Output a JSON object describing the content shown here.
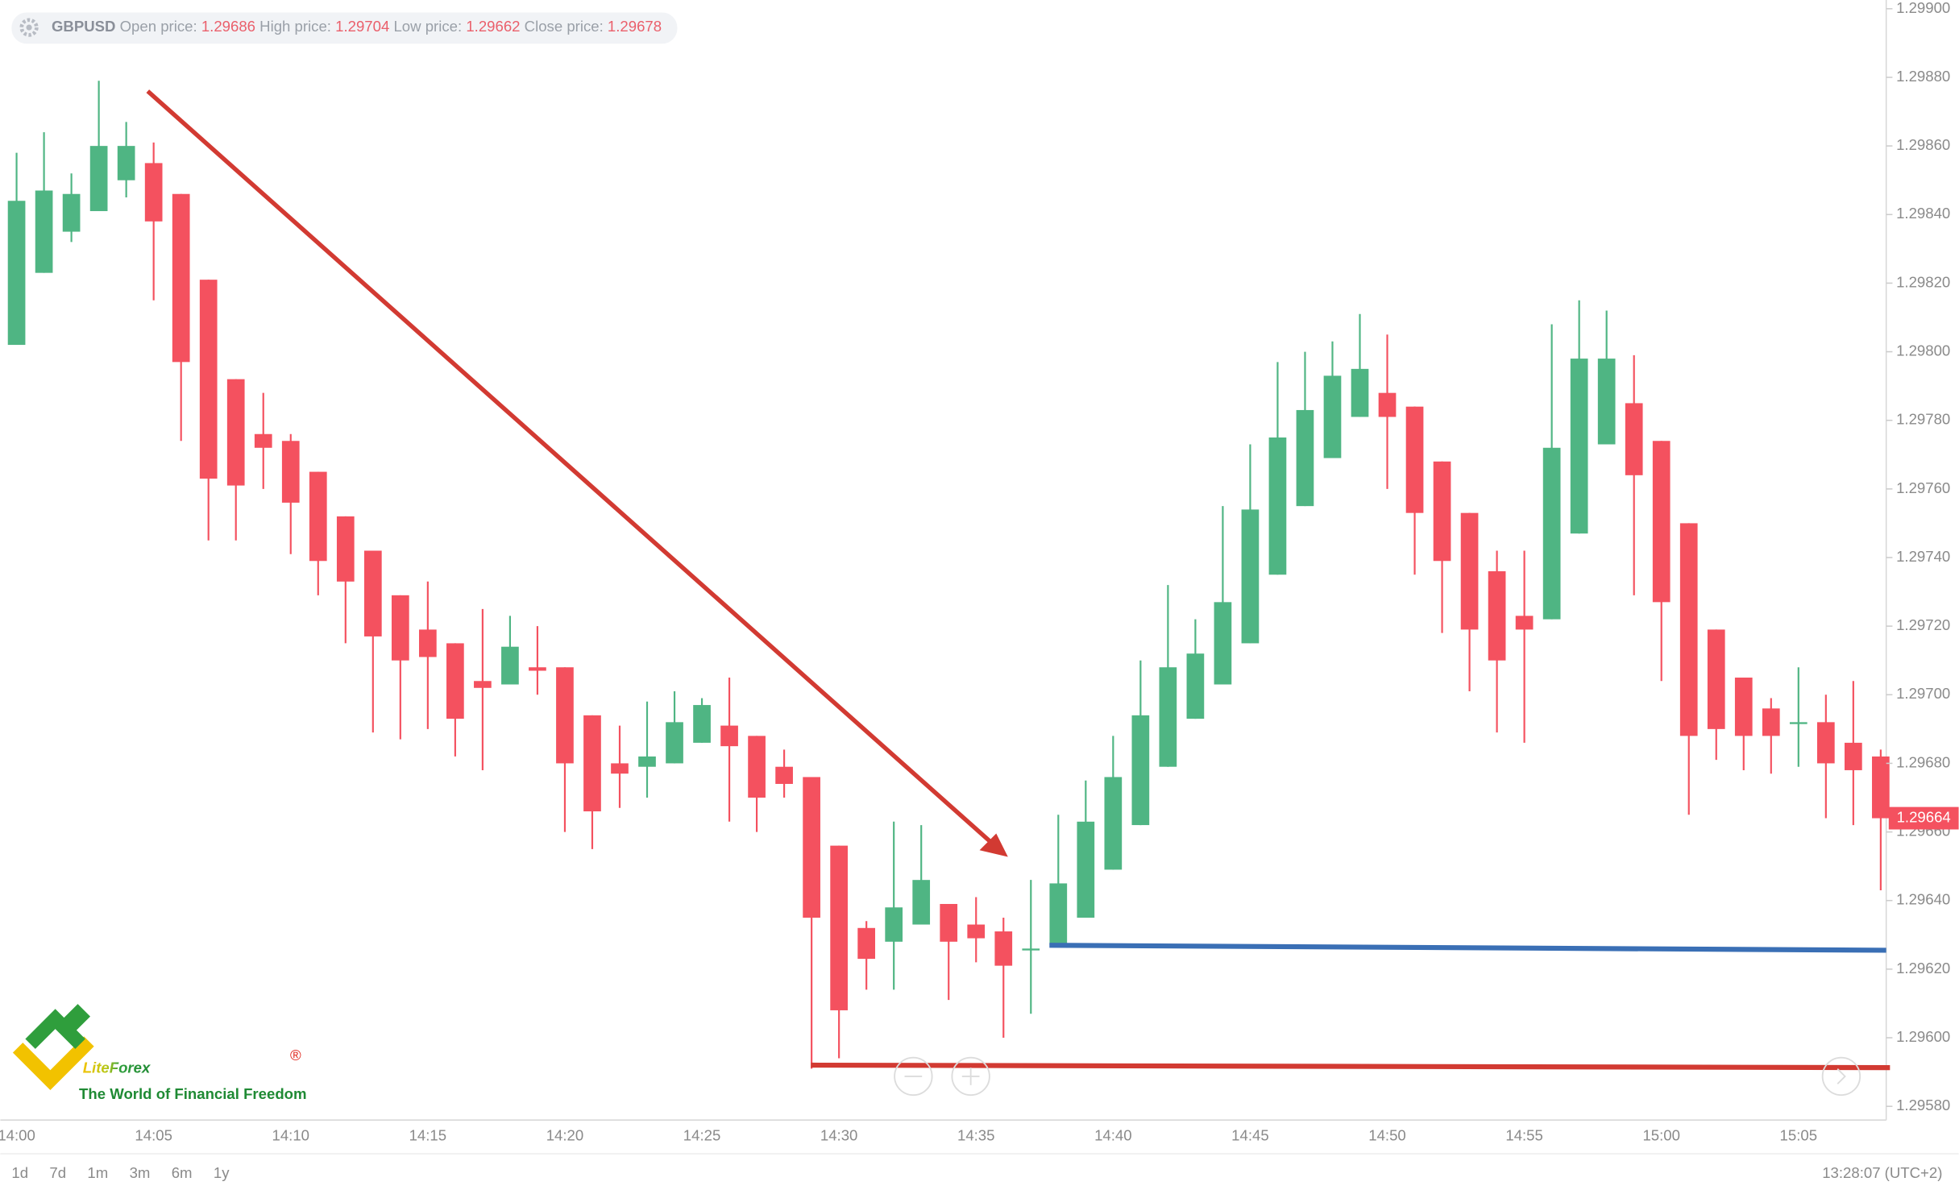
{
  "header": {
    "symbol": "GBPUSD",
    "open_label": "Open price:",
    "open": 1.29686,
    "high_label": "High price:",
    "high": 1.29704,
    "low_label": "Low price:",
    "low": 1.29662,
    "close_label": "Close price:",
    "close": 1.29678
  },
  "logo": {
    "name": "LiteForex",
    "mark": "®",
    "tagline": "The World of Financial Freedom"
  },
  "footer": {
    "periods": [
      "1d",
      "7d",
      "1m",
      "3m",
      "6m",
      "1y"
    ],
    "clock": "13:28:07 (UTC+2)"
  },
  "chart_data": {
    "type": "candlestick",
    "up_color": "#4fb583",
    "down_color": "#f4515f",
    "categories": [
      "14:00",
      null,
      null,
      null,
      null,
      "14:05",
      null,
      null,
      null,
      null,
      "14:10",
      null,
      null,
      null,
      null,
      "14:15",
      null,
      null,
      null,
      null,
      "14:20",
      null,
      null,
      null,
      null,
      "14:25",
      null,
      null,
      null,
      null,
      "14:30",
      null,
      null,
      null,
      null,
      "14:35",
      null,
      null,
      null,
      null,
      "14:40",
      null,
      null,
      null,
      null,
      "14:45",
      null,
      null,
      null,
      null,
      "14:50",
      null,
      null,
      null,
      null,
      "14:55",
      null,
      null,
      null,
      null,
      "15:00",
      null,
      null,
      null,
      null,
      "15:05",
      null,
      null,
      null
    ],
    "open": [
      1.29802,
      1.29823,
      1.29835,
      1.29841,
      1.2985,
      1.29855,
      1.29846,
      1.29821,
      1.29792,
      1.29776,
      1.29774,
      1.29765,
      1.29752,
      1.29742,
      1.29729,
      1.29719,
      1.29715,
      1.29704,
      1.29703,
      1.29708,
      1.29708,
      1.29694,
      1.2968,
      1.29679,
      1.2968,
      1.29686,
      1.29691,
      1.29688,
      1.29679,
      1.29676,
      1.29656,
      1.29632,
      1.29628,
      1.29633,
      1.29639,
      1.29633,
      1.29631,
      1.29626,
      1.29627,
      1.29635,
      1.29649,
      1.29662,
      1.29679,
      1.29693,
      1.29703,
      1.29715,
      1.29735,
      1.29755,
      1.29769,
      1.29781,
      1.29788,
      1.29784,
      1.29768,
      1.29753,
      1.29736,
      1.29723,
      1.29722,
      1.29747,
      1.29773,
      1.29785,
      1.29774,
      1.2975,
      1.29719,
      1.29705,
      1.29696,
      1.29692,
      1.29692,
      1.29686,
      1.29682
    ],
    "high": [
      1.29858,
      1.29864,
      1.29852,
      1.29879,
      1.29867,
      1.29861,
      1.29846,
      1.29821,
      1.29792,
      1.29788,
      1.29776,
      1.29765,
      1.29752,
      1.29742,
      1.29729,
      1.29733,
      1.29715,
      1.29725,
      1.29723,
      1.2972,
      1.29708,
      1.29694,
      1.29691,
      1.29698,
      1.29701,
      1.29699,
      1.29705,
      1.29688,
      1.29684,
      1.29676,
      1.29656,
      1.29634,
      1.29663,
      1.29662,
      1.29639,
      1.29641,
      1.29635,
      1.29646,
      1.29665,
      1.29675,
      1.29688,
      1.2971,
      1.29732,
      1.29722,
      1.29755,
      1.29773,
      1.29797,
      1.298,
      1.29803,
      1.29811,
      1.29805,
      1.29784,
      1.29768,
      1.29753,
      1.29742,
      1.29742,
      1.29808,
      1.29815,
      1.29812,
      1.29799,
      1.29774,
      1.2975,
      1.29719,
      1.29705,
      1.29699,
      1.29708,
      1.297,
      1.29704,
      1.29684
    ],
    "low": [
      1.29802,
      1.29823,
      1.29832,
      1.29841,
      1.29845,
      1.29815,
      1.29774,
      1.29745,
      1.29745,
      1.2976,
      1.29741,
      1.29729,
      1.29715,
      1.29689,
      1.29687,
      1.2969,
      1.29682,
      1.29678,
      1.29703,
      1.297,
      1.2966,
      1.29655,
      1.29667,
      1.2967,
      1.2968,
      1.29686,
      1.29663,
      1.2966,
      1.2967,
      1.29591,
      1.29594,
      1.29614,
      1.29614,
      1.29633,
      1.29611,
      1.29622,
      1.296,
      1.29607,
      1.29627,
      1.29635,
      1.29649,
      1.29662,
      1.29679,
      1.29693,
      1.29703,
      1.29715,
      1.29735,
      1.29755,
      1.29769,
      1.29781,
      1.2976,
      1.29735,
      1.29718,
      1.29701,
      1.29689,
      1.29686,
      1.29722,
      1.29747,
      1.29773,
      1.29729,
      1.29704,
      1.29665,
      1.29681,
      1.29678,
      1.29677,
      1.29679,
      1.29664,
      1.29662,
      1.29643
    ],
    "close": [
      1.29844,
      1.29847,
      1.29846,
      1.2986,
      1.2986,
      1.29838,
      1.29797,
      1.29763,
      1.29761,
      1.29772,
      1.29756,
      1.29739,
      1.29733,
      1.29717,
      1.2971,
      1.29711,
      1.29693,
      1.29702,
      1.29714,
      1.29707,
      1.2968,
      1.29666,
      1.29677,
      1.29682,
      1.29692,
      1.29697,
      1.29685,
      1.2967,
      1.29674,
      1.29635,
      1.29608,
      1.29623,
      1.29638,
      1.29646,
      1.29628,
      1.29629,
      1.29621,
      1.29626,
      1.29645,
      1.29663,
      1.29676,
      1.29694,
      1.29708,
      1.29712,
      1.29727,
      1.29754,
      1.29775,
      1.29783,
      1.29793,
      1.29795,
      1.29781,
      1.29753,
      1.29739,
      1.29719,
      1.2971,
      1.29719,
      1.29772,
      1.29798,
      1.29798,
      1.29764,
      1.29727,
      1.29688,
      1.2969,
      1.29688,
      1.29688,
      1.29692,
      1.2968,
      1.29678,
      1.29664
    ],
    "ylim": [
      1.2958,
      1.299
    ],
    "yticks": [
      {
        "value": 1.2958,
        "label": "1.29580"
      },
      {
        "value": 1.296,
        "label": "1.29600"
      },
      {
        "value": 1.2962,
        "label": "1.29620"
      },
      {
        "value": 1.2964,
        "label": "1.29640"
      },
      {
        "value": 1.2966,
        "label": "1.29660"
      },
      {
        "value": 1.2968,
        "label": "1.29680"
      },
      {
        "value": 1.297,
        "label": "1.29700"
      },
      {
        "value": 1.2972,
        "label": "1.29720"
      },
      {
        "value": 1.2974,
        "label": "1.29740"
      },
      {
        "value": 1.2976,
        "label": "1.29760"
      },
      {
        "value": 1.2978,
        "label": "1.29780"
      },
      {
        "value": 1.298,
        "label": "1.29800"
      },
      {
        "value": 1.2982,
        "label": "1.29820"
      },
      {
        "value": 1.2984,
        "label": "1.29840"
      },
      {
        "value": 1.2986,
        "label": "1.29860"
      },
      {
        "value": 1.2988,
        "label": "1.29880"
      },
      {
        "value": 1.299,
        "label": "1.29900"
      }
    ],
    "grid": false
  }
}
